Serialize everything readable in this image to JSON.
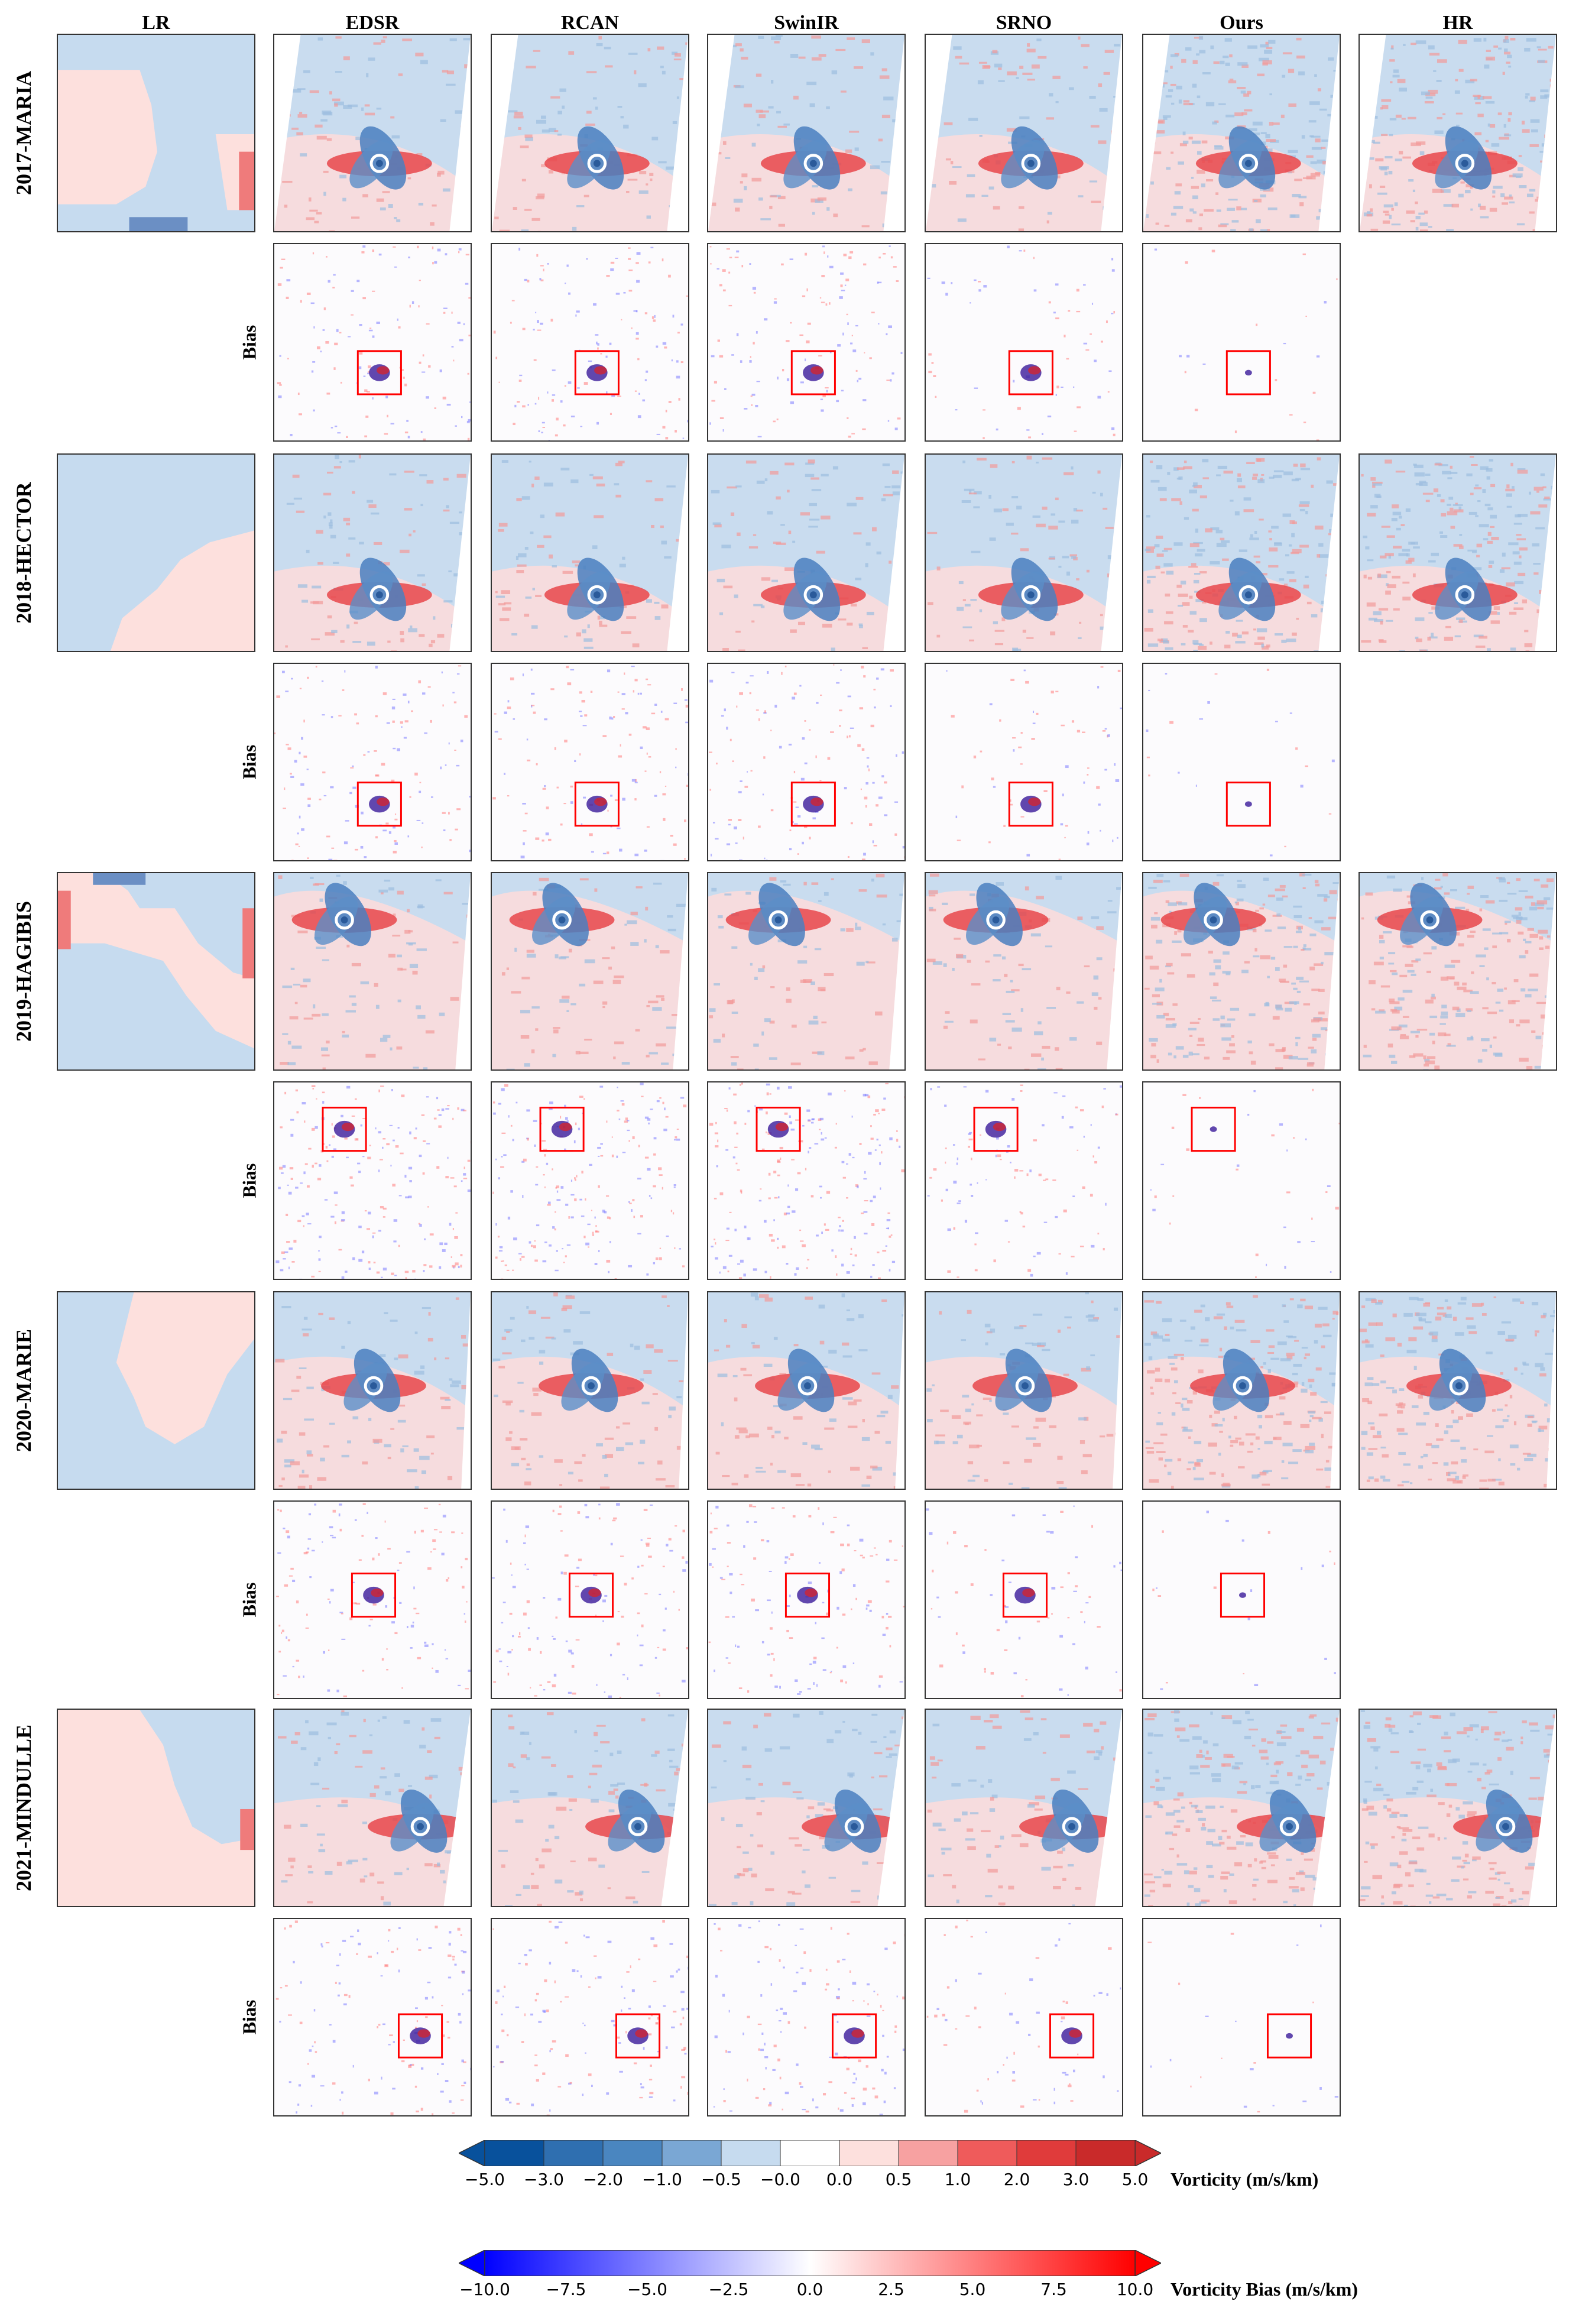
{
  "columns": [
    "LR",
    "EDSR",
    "RCAN",
    "SwinIR",
    "SRNO",
    "Ours",
    "HR"
  ],
  "bias_label": "Bias",
  "rows": [
    {
      "name": "2017-MARIA"
    },
    {
      "name": "2018-HECTOR"
    },
    {
      "name": "2019-HAGIBIS"
    },
    {
      "name": "2020-MARIE"
    },
    {
      "name": "2021-MINDULLE"
    }
  ],
  "colorbars": [
    {
      "title": "Vorticity (m/s/km)",
      "ticks": [
        "−5.0",
        "−3.0",
        "−2.0",
        "−1.0",
        "−0.5",
        "−0.0",
        "0.0",
        "0.5",
        "1.0",
        "2.0",
        "3.0",
        "5.0"
      ],
      "colors": [
        "#08519c",
        "#2f6fb0",
        "#4a86c0",
        "#7aa7d4",
        "#c6dbef",
        "#ffffff",
        "#fde0dd",
        "#f7a1a1",
        "#ef5b5b",
        "#e03b3b",
        "#c92a2a"
      ]
    },
    {
      "title": "Vorticity Bias (m/s/km)",
      "ticks": [
        "−10.0",
        "−7.5",
        "−5.0",
        "−2.5",
        "0.0",
        "2.5",
        "5.0",
        "7.5",
        "10.0"
      ],
      "gradient": [
        "#0000ff",
        "#ffffff",
        "#ff0000"
      ]
    }
  ],
  "colors": {
    "lr_blue": "#c6dbef",
    "lr_pink": "#fde0dd",
    "box_red": "#ff0000"
  }
}
